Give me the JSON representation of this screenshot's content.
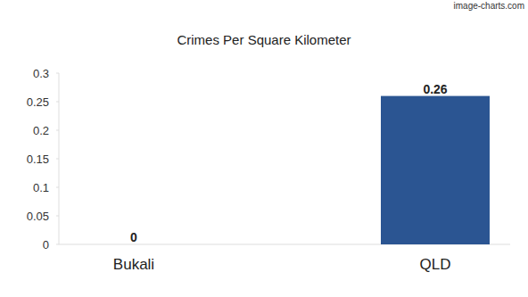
{
  "chart_data": {
    "type": "bar",
    "title": "Crimes Per Square Kilometer",
    "annotations": [
      "image-charts.com"
    ],
    "categories": [
      "Bukali",
      "QLD"
    ],
    "values": [
      0,
      0.26
    ],
    "color": "#2b5592",
    "ylim": [
      0,
      0.3
    ],
    "yticks": [
      0,
      0.05,
      0.1,
      0.15,
      0.2,
      0.25,
      0.3
    ],
    "grid": false,
    "data_labels": true
  }
}
